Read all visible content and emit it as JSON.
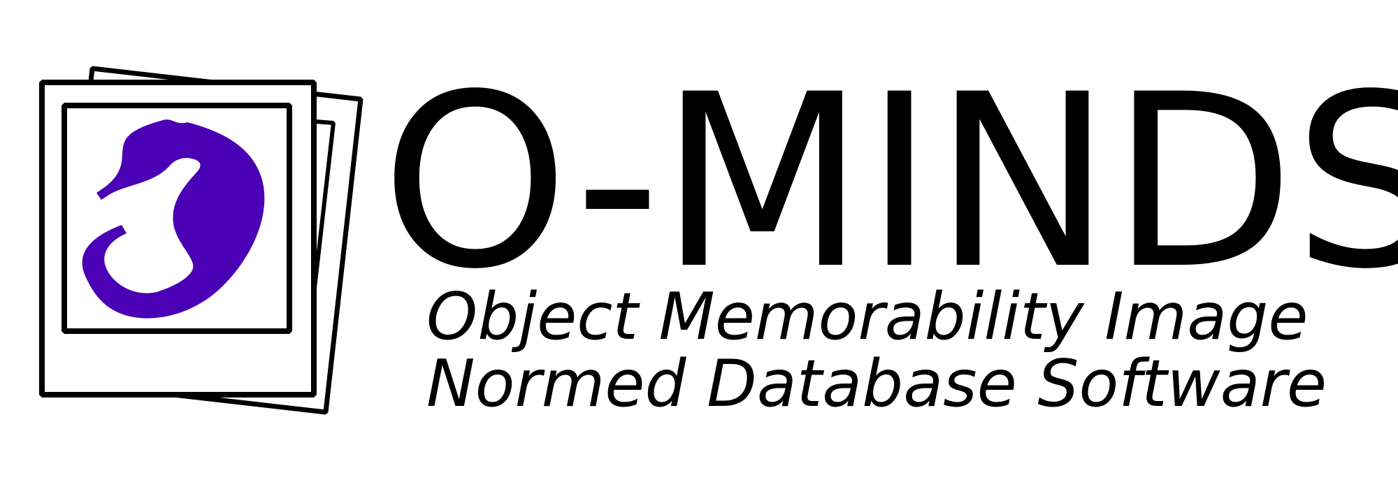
{
  "brand": {
    "title": "O-MINDS",
    "subtitle_line1": "Object Memorability Image",
    "subtitle_line2": "Normed Database Software"
  },
  "colors": {
    "background": "#ffffff",
    "ink": "#000000",
    "accent": "#4a00b4"
  },
  "icons": {
    "logo": "stacked-photo-frames-with-purple-blob"
  }
}
